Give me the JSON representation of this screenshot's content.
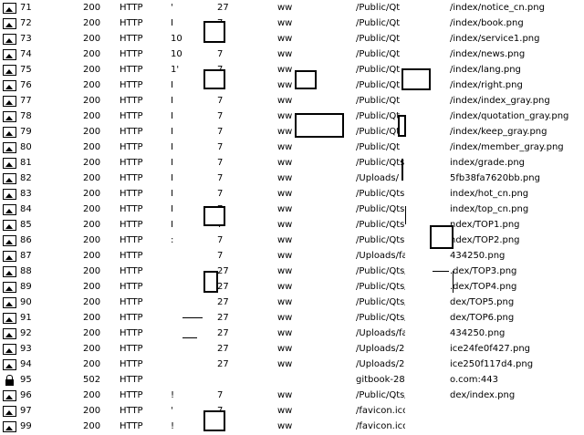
{
  "session_rows": [
    {
      "num": "71",
      "result": "200",
      "protocol": "HTTP",
      "host": "'",
      "size": "27",
      "content_type": "ww",
      "process": "",
      "url": "/Public/Qt",
      "file": "/index/notice_cn.png",
      "icon": "image-icon"
    },
    {
      "num": "72",
      "result": "200",
      "protocol": "HTTP",
      "host": "I",
      "size": "7",
      "content_type": "ww",
      "process": "",
      "url": "/Public/Qt",
      "file": "/index/book.png",
      "icon": "image-icon"
    },
    {
      "num": "73",
      "result": "200",
      "protocol": "HTTP",
      "host": "10",
      "size": "7",
      "content_type": "ww",
      "process": "",
      "url": "/Public/Qt",
      "file": "/index/service1.png",
      "icon": "image-icon"
    },
    {
      "num": "74",
      "result": "200",
      "protocol": "HTTP",
      "host": "10",
      "size": "7",
      "content_type": "ww",
      "process": "",
      "url": "/Public/Qt",
      "file": "/index/news.png",
      "icon": "image-icon"
    },
    {
      "num": "75",
      "result": "200",
      "protocol": "HTTP",
      "host": "1'",
      "size": "7",
      "content_type": "ww",
      "process": "",
      "url": "/Public/Qt",
      "file": "/index/lang.png",
      "icon": "image-icon"
    },
    {
      "num": "76",
      "result": "200",
      "protocol": "HTTP",
      "host": "I",
      "size": "7",
      "content_type": "ww",
      "process": "",
      "url": "/Public/Qt",
      "file": "/index/right.png",
      "icon": "image-icon"
    },
    {
      "num": "77",
      "result": "200",
      "protocol": "HTTP",
      "host": "I",
      "size": "7",
      "content_type": "ww",
      "process": "",
      "url": "/Public/Qt",
      "file": "/index/index_gray.png",
      "icon": "image-icon"
    },
    {
      "num": "78",
      "result": "200",
      "protocol": "HTTP",
      "host": "I",
      "size": "7",
      "content_type": "ww",
      "process": "",
      "url": "/Public/Qt",
      "file": "/index/quotation_gray.png",
      "icon": "image-icon"
    },
    {
      "num": "79",
      "result": "200",
      "protocol": "HTTP",
      "host": "I",
      "size": "7",
      "content_type": "ww",
      "process": "",
      "url": "/Public/Qt",
      "file": "/index/keep_gray.png",
      "icon": "image-icon"
    },
    {
      "num": "80",
      "result": "200",
      "protocol": "HTTP",
      "host": "I",
      "size": "7",
      "content_type": "ww",
      "process": "",
      "url": "/Public/Qt",
      "file": "/index/member_gray.png",
      "icon": "image-icon"
    },
    {
      "num": "81",
      "result": "200",
      "protocol": "HTTP",
      "host": "I",
      "size": "7",
      "content_type": "ww",
      "process": "",
      "url": "/Public/Qts",
      "file": "index/grade.png",
      "icon": "image-icon"
    },
    {
      "num": "82",
      "result": "200",
      "protocol": "HTTP",
      "host": "I",
      "size": "7",
      "content_type": "ww",
      "process": "",
      "url": "/Uploads/",
      "file": "5fb38fa7620bb.png",
      "icon": "image-icon"
    },
    {
      "num": "83",
      "result": "200",
      "protocol": "HTTP",
      "host": "I",
      "size": "7",
      "content_type": "ww",
      "process": "",
      "url": "/Public/Qts",
      "file": "index/hot_cn.png",
      "icon": "image-icon"
    },
    {
      "num": "84",
      "result": "200",
      "protocol": "HTTP",
      "host": "I",
      "size": "7",
      "content_type": "ww",
      "process": "",
      "url": "/Public/Qts",
      "file": "index/top_cn.png",
      "icon": "image-icon"
    },
    {
      "num": "85",
      "result": "200",
      "protocol": "HTTP",
      "host": "I",
      "size": "7",
      "content_type": "ww",
      "process": "",
      "url": "/Public/Qts.",
      "file": "ndex/TOP1.png",
      "icon": "image-icon"
    },
    {
      "num": "86",
      "result": "200",
      "protocol": "HTTP",
      "host": ":",
      "size": "7",
      "content_type": "ww",
      "process": "",
      "url": "/Public/Qts.",
      "file": "ndex/TOP2.png",
      "icon": "image-icon"
    },
    {
      "num": "87",
      "result": "200",
      "protocol": "HTTP",
      "host": "",
      "size": "7",
      "content_type": "ww",
      "process": "",
      "url": "/Uploads/fa",
      "file": "434250.png",
      "icon": "image-icon"
    },
    {
      "num": "88",
      "result": "200",
      "protocol": "HTTP",
      "host": "",
      "size": "27",
      "content_type": "ww",
      "process": "",
      "url": "/Public/Qts/",
      "file": ".dex/TOP3.png",
      "icon": "image-icon"
    },
    {
      "num": "89",
      "result": "200",
      "protocol": "HTTP",
      "host": "",
      "size": "27",
      "content_type": "ww",
      "process": "",
      "url": "/Public/Qts/",
      "file": ".dex/TOP4.png",
      "icon": "image-icon"
    },
    {
      "num": "90",
      "result": "200",
      "protocol": "HTTP",
      "host": "",
      "size": "27",
      "content_type": "ww",
      "process": "",
      "url": "/Public/Qts/",
      "file": "dex/TOP5.png",
      "icon": "image-icon"
    },
    {
      "num": "91",
      "result": "200",
      "protocol": "HTTP",
      "host": "",
      "size": "27",
      "content_type": "ww",
      "process": "",
      "url": "/Public/Qts/",
      "file": "dex/TOP6.png",
      "icon": "image-icon"
    },
    {
      "num": "92",
      "result": "200",
      "protocol": "HTTP",
      "host": "",
      "size": "27",
      "content_type": "ww",
      "process": "",
      "url": "/Uploads/fac",
      "file": "434250.png",
      "icon": "image-icon"
    },
    {
      "num": "93",
      "result": "200",
      "protocol": "HTTP",
      "host": "",
      "size": "27",
      "content_type": "ww",
      "process": "",
      "url": "/Uploads/20",
      "file": "ice24fe0f427.png",
      "icon": "image-icon"
    },
    {
      "num": "94",
      "result": "200",
      "protocol": "HTTP",
      "host": "",
      "size": "27",
      "content_type": "ww",
      "process": "",
      "url": "/Uploads/20",
      "file": "ice250f117d4.png",
      "icon": "image-icon"
    },
    {
      "num": "95",
      "result": "502",
      "protocol": "HTTP",
      "host": "",
      "size": "",
      "content_type": "",
      "process": "",
      "url": "gitbook-284",
      "file": "o.com:443",
      "icon": "lock-icon"
    },
    {
      "num": "96",
      "result": "200",
      "protocol": "HTTP",
      "host": "!",
      "size": "7",
      "content_type": "ww",
      "process": "",
      "url": "/Public/Qts/",
      "file": "dex/index.png",
      "icon": "image-icon"
    },
    {
      "num": "97",
      "result": "200",
      "protocol": "HTTP",
      "host": "'",
      "size": "7",
      "content_type": "ww",
      "process": "",
      "url": "/favicon.ico",
      "file": "",
      "icon": "image-icon"
    },
    {
      "num": "99",
      "result": "200",
      "protocol": "HTTP",
      "host": "!",
      "size": "7",
      "content_type": "ww",
      "process": "",
      "url": "/favicon.ico[",
      "file": "",
      "icon": "image-icon"
    }
  ]
}
